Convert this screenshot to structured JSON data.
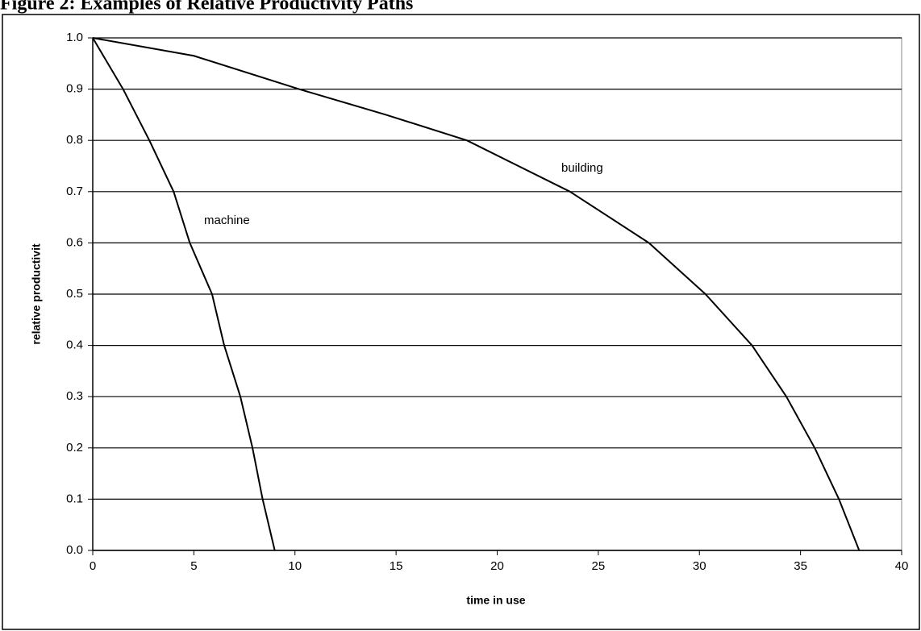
{
  "chart_data": {
    "type": "line",
    "title": "Figure 2: Examples of Relative Productivity Paths",
    "x_label": "time in use",
    "y_label": "relative productivit",
    "xlim": [
      0,
      40
    ],
    "xticks": [
      0,
      5,
      10,
      15,
      20,
      25,
      30,
      35,
      40
    ],
    "ylim": [
      0,
      1
    ],
    "yticks": [
      {
        "value": 0,
        "label": "0.0"
      },
      0.1,
      0.2,
      0.3,
      0.4,
      0.5,
      0.6,
      0.7,
      0.8,
      0.9,
      {
        "value": 1,
        "label": "1.0"
      }
    ],
    "grid": true,
    "annotations": [
      "machine",
      "building"
    ],
    "series": [
      {
        "name": "machine",
        "color": "#000000",
        "x": [
          0,
          1.5,
          2.8,
          4.0,
          4.8,
          5.9,
          6.5,
          7.3,
          7.9,
          8.4,
          9.0
        ],
        "values": [
          1.0,
          0.9,
          0.8,
          0.7,
          0.6,
          0.5,
          0.4,
          0.3,
          0.2,
          0.1,
          0.0
        ]
      },
      {
        "name": "building",
        "color": "#000000",
        "x": [
          0,
          5,
          10.2,
          14.5,
          18.5,
          23.6,
          27.5,
          30.3,
          32.6,
          34.3,
          35.7,
          36.9,
          37.9
        ],
        "values": [
          1.0,
          0.965,
          0.9,
          0.85,
          0.8,
          0.7,
          0.6,
          0.5,
          0.4,
          0.3,
          0.2,
          0.1,
          0.0
        ]
      }
    ]
  }
}
